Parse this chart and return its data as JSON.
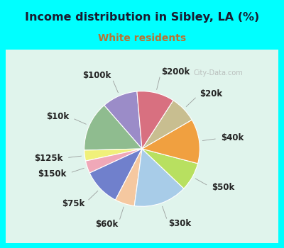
{
  "title": "Income distribution in Sibley, LA (%)",
  "subtitle": "White residents",
  "title_color": "#1a1a2e",
  "subtitle_color": "#b87333",
  "background_color": "#00ffff",
  "chart_bg_color": "#d8f0e8",
  "labels": [
    "$100k",
    "$10k",
    "$125k",
    "$150k",
    "$75k",
    "$60k",
    "$30k",
    "$50k",
    "$40k",
    "$20k",
    "$200k"
  ],
  "values": [
    10.0,
    14.0,
    3.0,
    3.5,
    10.5,
    5.5,
    15.0,
    8.0,
    12.5,
    7.5,
    10.5
  ],
  "colors": [
    "#9b8cc8",
    "#8fbc8f",
    "#f0f07a",
    "#f0a8b8",
    "#7080cc",
    "#f5c8a0",
    "#a8cce8",
    "#b8e060",
    "#f0a040",
    "#c8be90",
    "#d87080"
  ],
  "startangle": 95,
  "label_fontsize": 8.5,
  "wedge_linewidth": 0.8,
  "wedge_edgecolor": "#ffffff"
}
